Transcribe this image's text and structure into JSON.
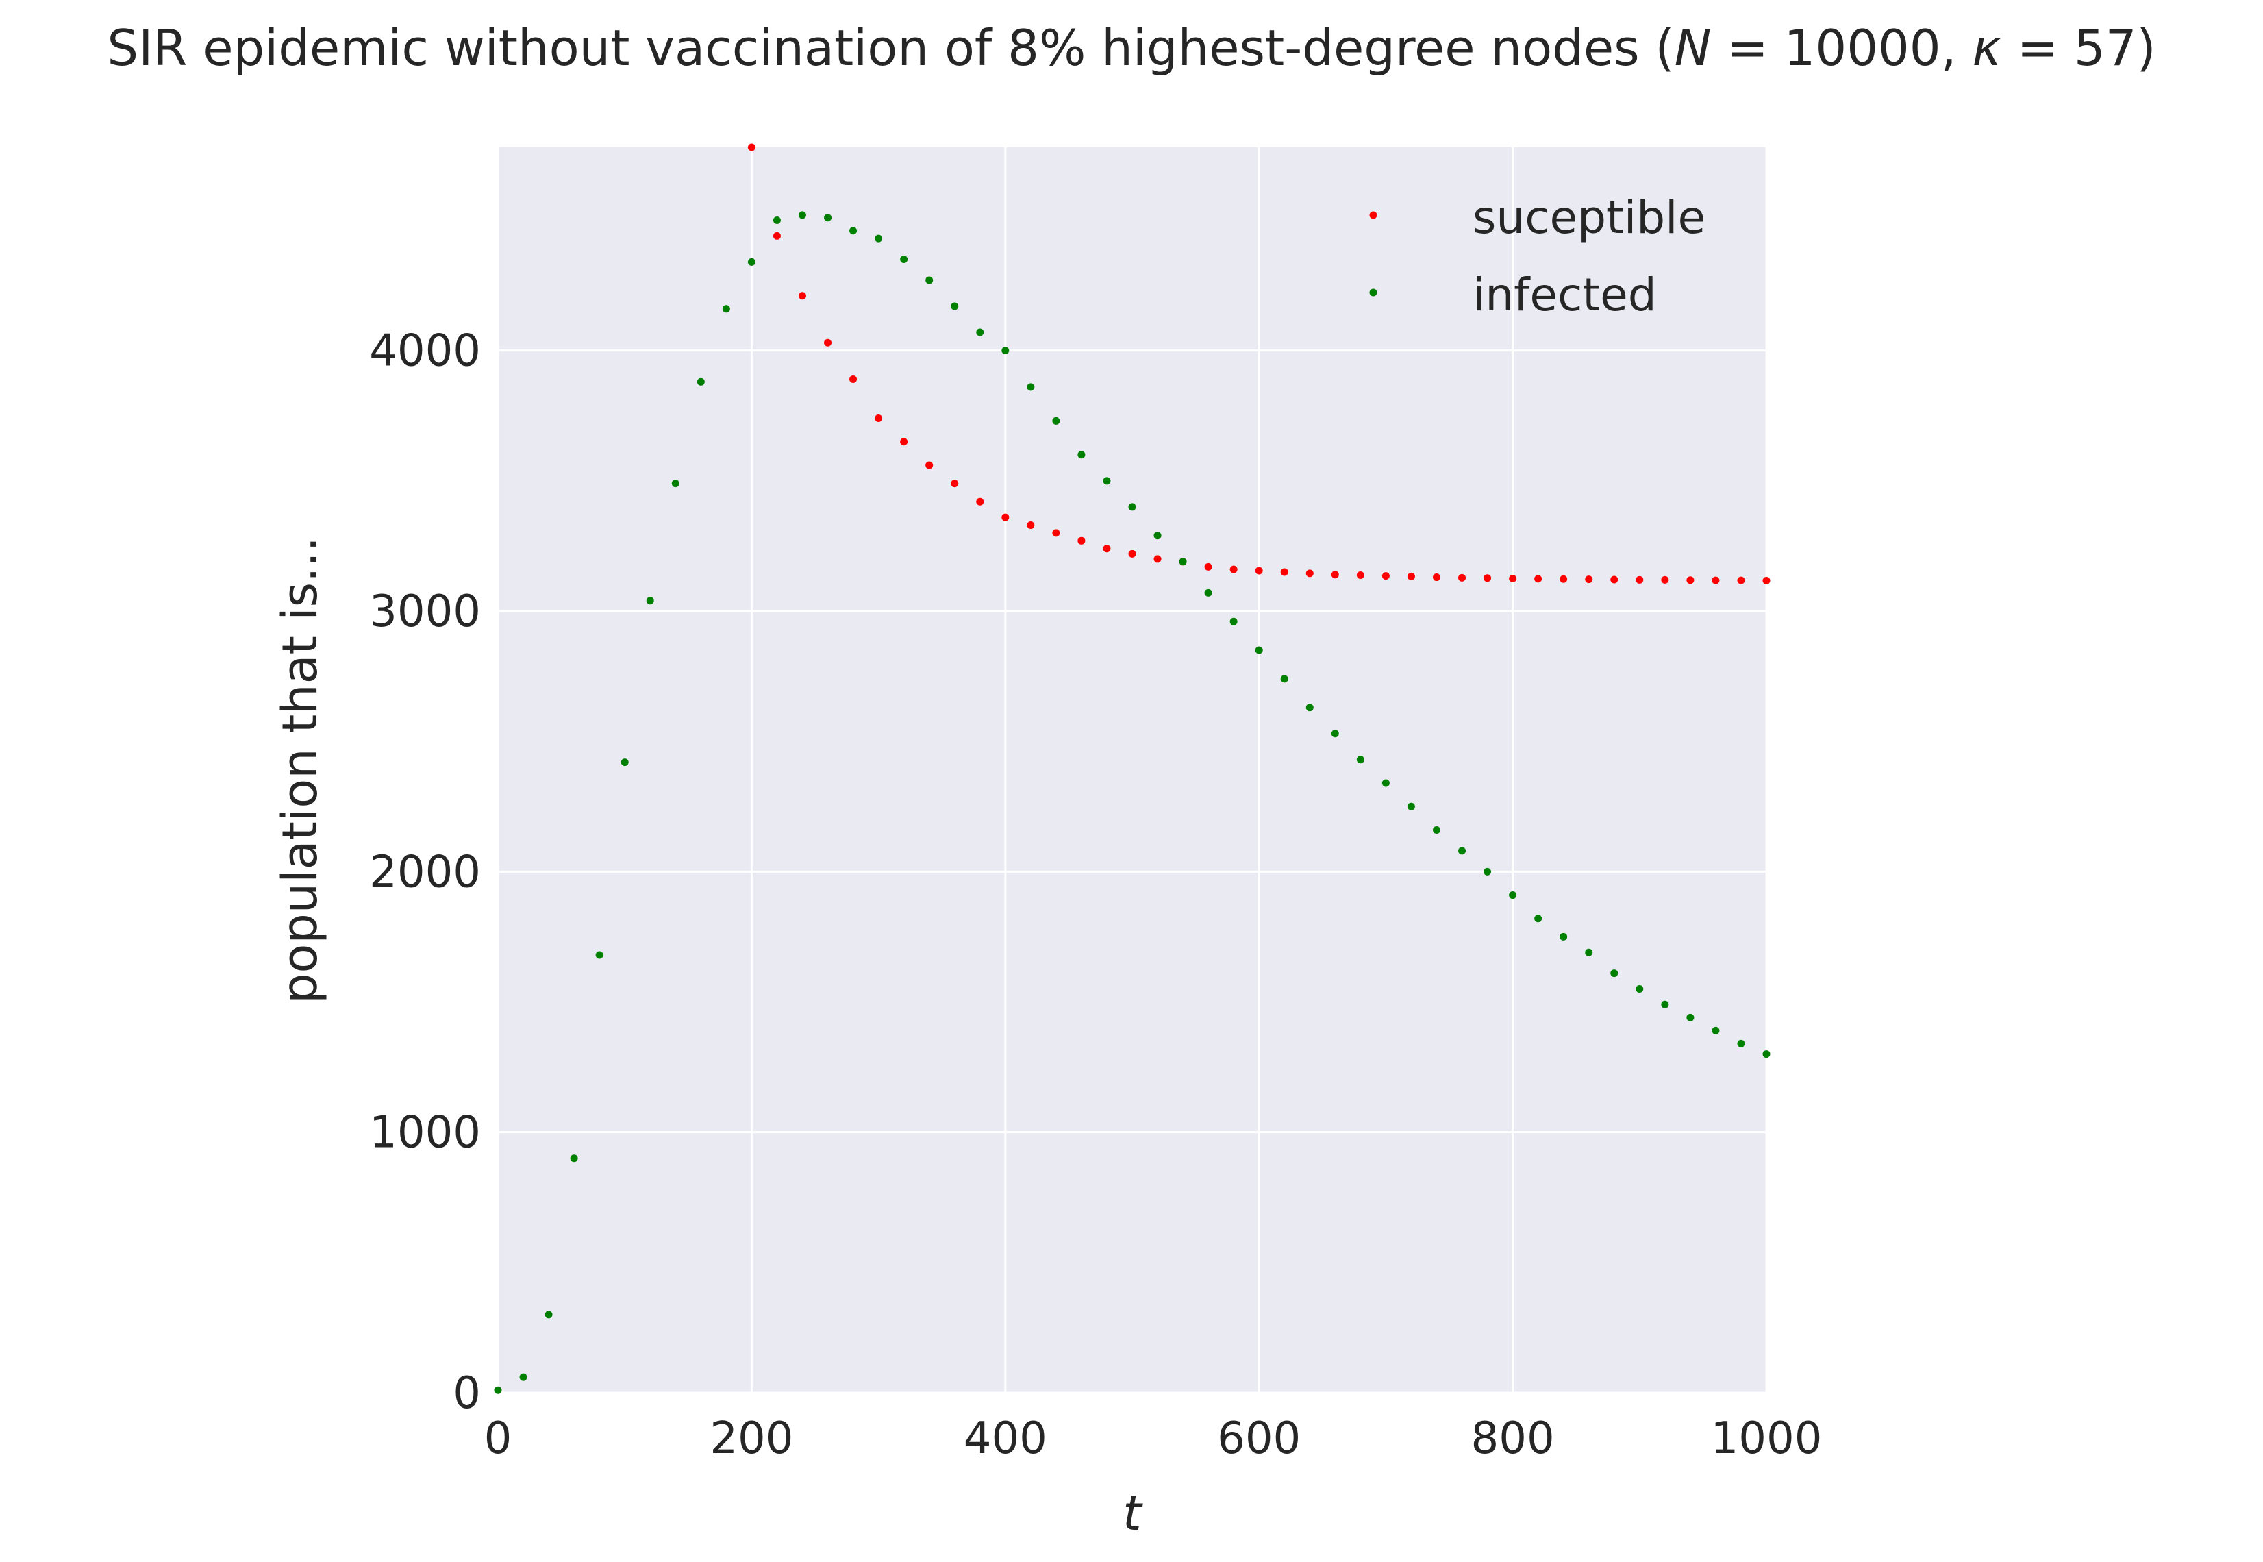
{
  "chart_data": {
    "type": "scatter",
    "title_prefix": "SIR epidemic without vaccination of 8% highest-degree nodes (",
    "title_math_N": "N",
    "title_math_eq1": " = 10000, ",
    "title_math_kappa": "κ",
    "title_math_eq2": " = 57)",
    "xlabel": "t",
    "ylabel": "population that is...",
    "xlim": [
      0,
      1000
    ],
    "ylim": [
      0,
      4780
    ],
    "xticks": [
      "0",
      "200",
      "400",
      "600",
      "800",
      "1000"
    ],
    "yticks": [
      "0",
      "1000",
      "2000",
      "3000",
      "4000"
    ],
    "grid": true,
    "legend_position": "top-right",
    "series": [
      {
        "name": "suceptible",
        "color": "#ff0000",
        "x": [
          200,
          220,
          240,
          260,
          280,
          300,
          320,
          340,
          360,
          380,
          400,
          420,
          440,
          460,
          480,
          500,
          520,
          540,
          560,
          580,
          600,
          620,
          640,
          660,
          680,
          700,
          720,
          740,
          760,
          780,
          800,
          820,
          840,
          860,
          880,
          900,
          920,
          940,
          960,
          980,
          1000
        ],
        "y": [
          4780,
          4440,
          4210,
          4030,
          3890,
          3740,
          3650,
          3560,
          3490,
          3420,
          3360,
          3330,
          3300,
          3270,
          3240,
          3220,
          3200,
          3190,
          3170,
          3160,
          3155,
          3150,
          3145,
          3140,
          3138,
          3135,
          3133,
          3130,
          3128,
          3127,
          3125,
          3124,
          3123,
          3122,
          3121,
          3120,
          3120,
          3119,
          3118,
          3118,
          3117
        ]
      },
      {
        "name": "infected",
        "color": "#008000",
        "x": [
          0,
          20,
          40,
          60,
          80,
          100,
          120,
          140,
          160,
          180,
          200,
          220,
          240,
          260,
          280,
          300,
          320,
          340,
          360,
          380,
          400,
          420,
          440,
          460,
          480,
          500,
          520,
          540,
          560,
          580,
          600,
          620,
          640,
          660,
          680,
          700,
          720,
          740,
          760,
          780,
          800,
          820,
          840,
          860,
          880,
          900,
          920,
          940,
          960,
          980,
          1000
        ],
        "y": [
          10,
          60,
          300,
          900,
          1680,
          2420,
          3040,
          3490,
          3880,
          4160,
          4340,
          4500,
          4520,
          4510,
          4460,
          4430,
          4350,
          4270,
          4170,
          4070,
          4000,
          3860,
          3730,
          3600,
          3500,
          3400,
          3290,
          3190,
          3070,
          2960,
          2850,
          2740,
          2630,
          2530,
          2430,
          2340,
          2250,
          2160,
          2080,
          2000,
          1910,
          1820,
          1750,
          1690,
          1610,
          1550,
          1490,
          1440,
          1390,
          1340,
          1300
        ]
      }
    ]
  }
}
